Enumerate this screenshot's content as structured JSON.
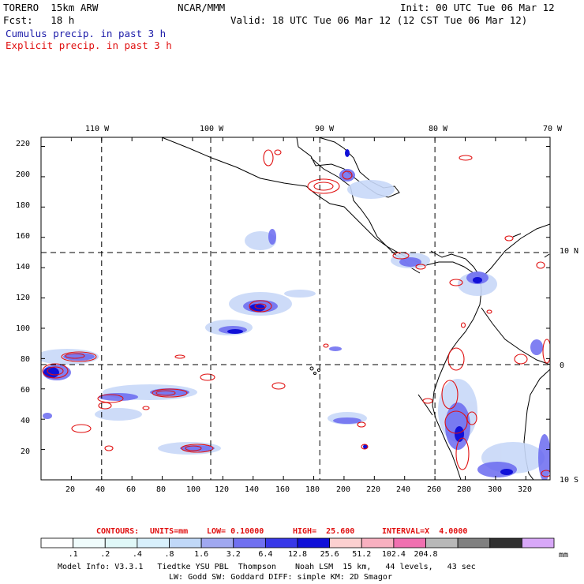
{
  "header": {
    "model": "TORERO  15km ARW",
    "org": "NCAR/MMM",
    "init": "Init: 00 UTC Tue 06 Mar 12",
    "fcst": "Fcst:   18 h",
    "valid": "Valid: 18 UTC Tue 06 Mar 12 (12 CST Tue 06 Mar 12)",
    "legend_cumulus": "Cumulus precip. in past 3 h",
    "legend_explicit": "Explicit precip. in past 3 h"
  },
  "map": {
    "top_lon_labels": [
      "110 W",
      "100 W",
      "90 W",
      "80 W",
      "70 W"
    ],
    "right_lat_labels": [
      "10 N",
      "0",
      "10 S"
    ],
    "y_ticks": [
      "20",
      "40",
      "60",
      "80",
      "100",
      "120",
      "140",
      "160",
      "180",
      "200",
      "220"
    ],
    "x_ticks": [
      "20",
      "40",
      "60",
      "80",
      "100",
      "120",
      "140",
      "160",
      "180",
      "200",
      "220",
      "240",
      "260",
      "280",
      "300",
      "320"
    ],
    "y_tick_values": [
      20,
      40,
      60,
      80,
      100,
      120,
      140,
      160,
      180,
      200,
      220
    ],
    "x_tick_values": [
      20,
      40,
      60,
      80,
      100,
      120,
      140,
      160,
      180,
      200,
      220,
      240,
      260,
      280,
      300,
      320
    ],
    "grid_lon_x_values": [
      40,
      112,
      184,
      260
    ],
    "grid_lat_y_values": [
      150,
      76
    ],
    "x_range": [
      0,
      336
    ],
    "y_range": [
      0,
      226
    ],
    "colors": {
      "cumulus_light": "#c8d8f8",
      "cumulus_mid": "#6a6af0",
      "cumulus_dark": "#1010d8",
      "explicit": "#e01010",
      "land": "#000000"
    }
  },
  "contours_line": {
    "contours": "CONTOURS:",
    "units": "UNITS=mm",
    "low": "LOW= 0.10000",
    "high": "HIGH=  25.600",
    "interval": "INTERVAL=X  4.0000"
  },
  "colorbar": {
    "unit": "mm",
    "colors": [
      "#ffffff",
      "#f0fcfc",
      "#e0f8f8",
      "#d8f0fc",
      "#c0d8f8",
      "#a0a8f0",
      "#7070f0",
      "#3838e8",
      "#1010d8",
      "#fcd0d0",
      "#f8b0c0",
      "#f070b0",
      "#b8b8b8",
      "#808080",
      "#303030",
      "#d8a8f8"
    ],
    "labels": [
      ".1",
      ".2",
      ".4",
      ".8",
      "1.6",
      "3.2",
      "6.4",
      "12.8",
      "25.6",
      "51.2",
      "102.4",
      "204.8"
    ]
  },
  "footer": {
    "line1": "Model Info: V3.3.1   Tiedtke YSU PBL  Thompson    Noah LSM  15 km,   44 levels,   43 sec",
    "line2": "LW: Godd SW: Goddard DIFF: simple KM: 2D Smagor"
  }
}
